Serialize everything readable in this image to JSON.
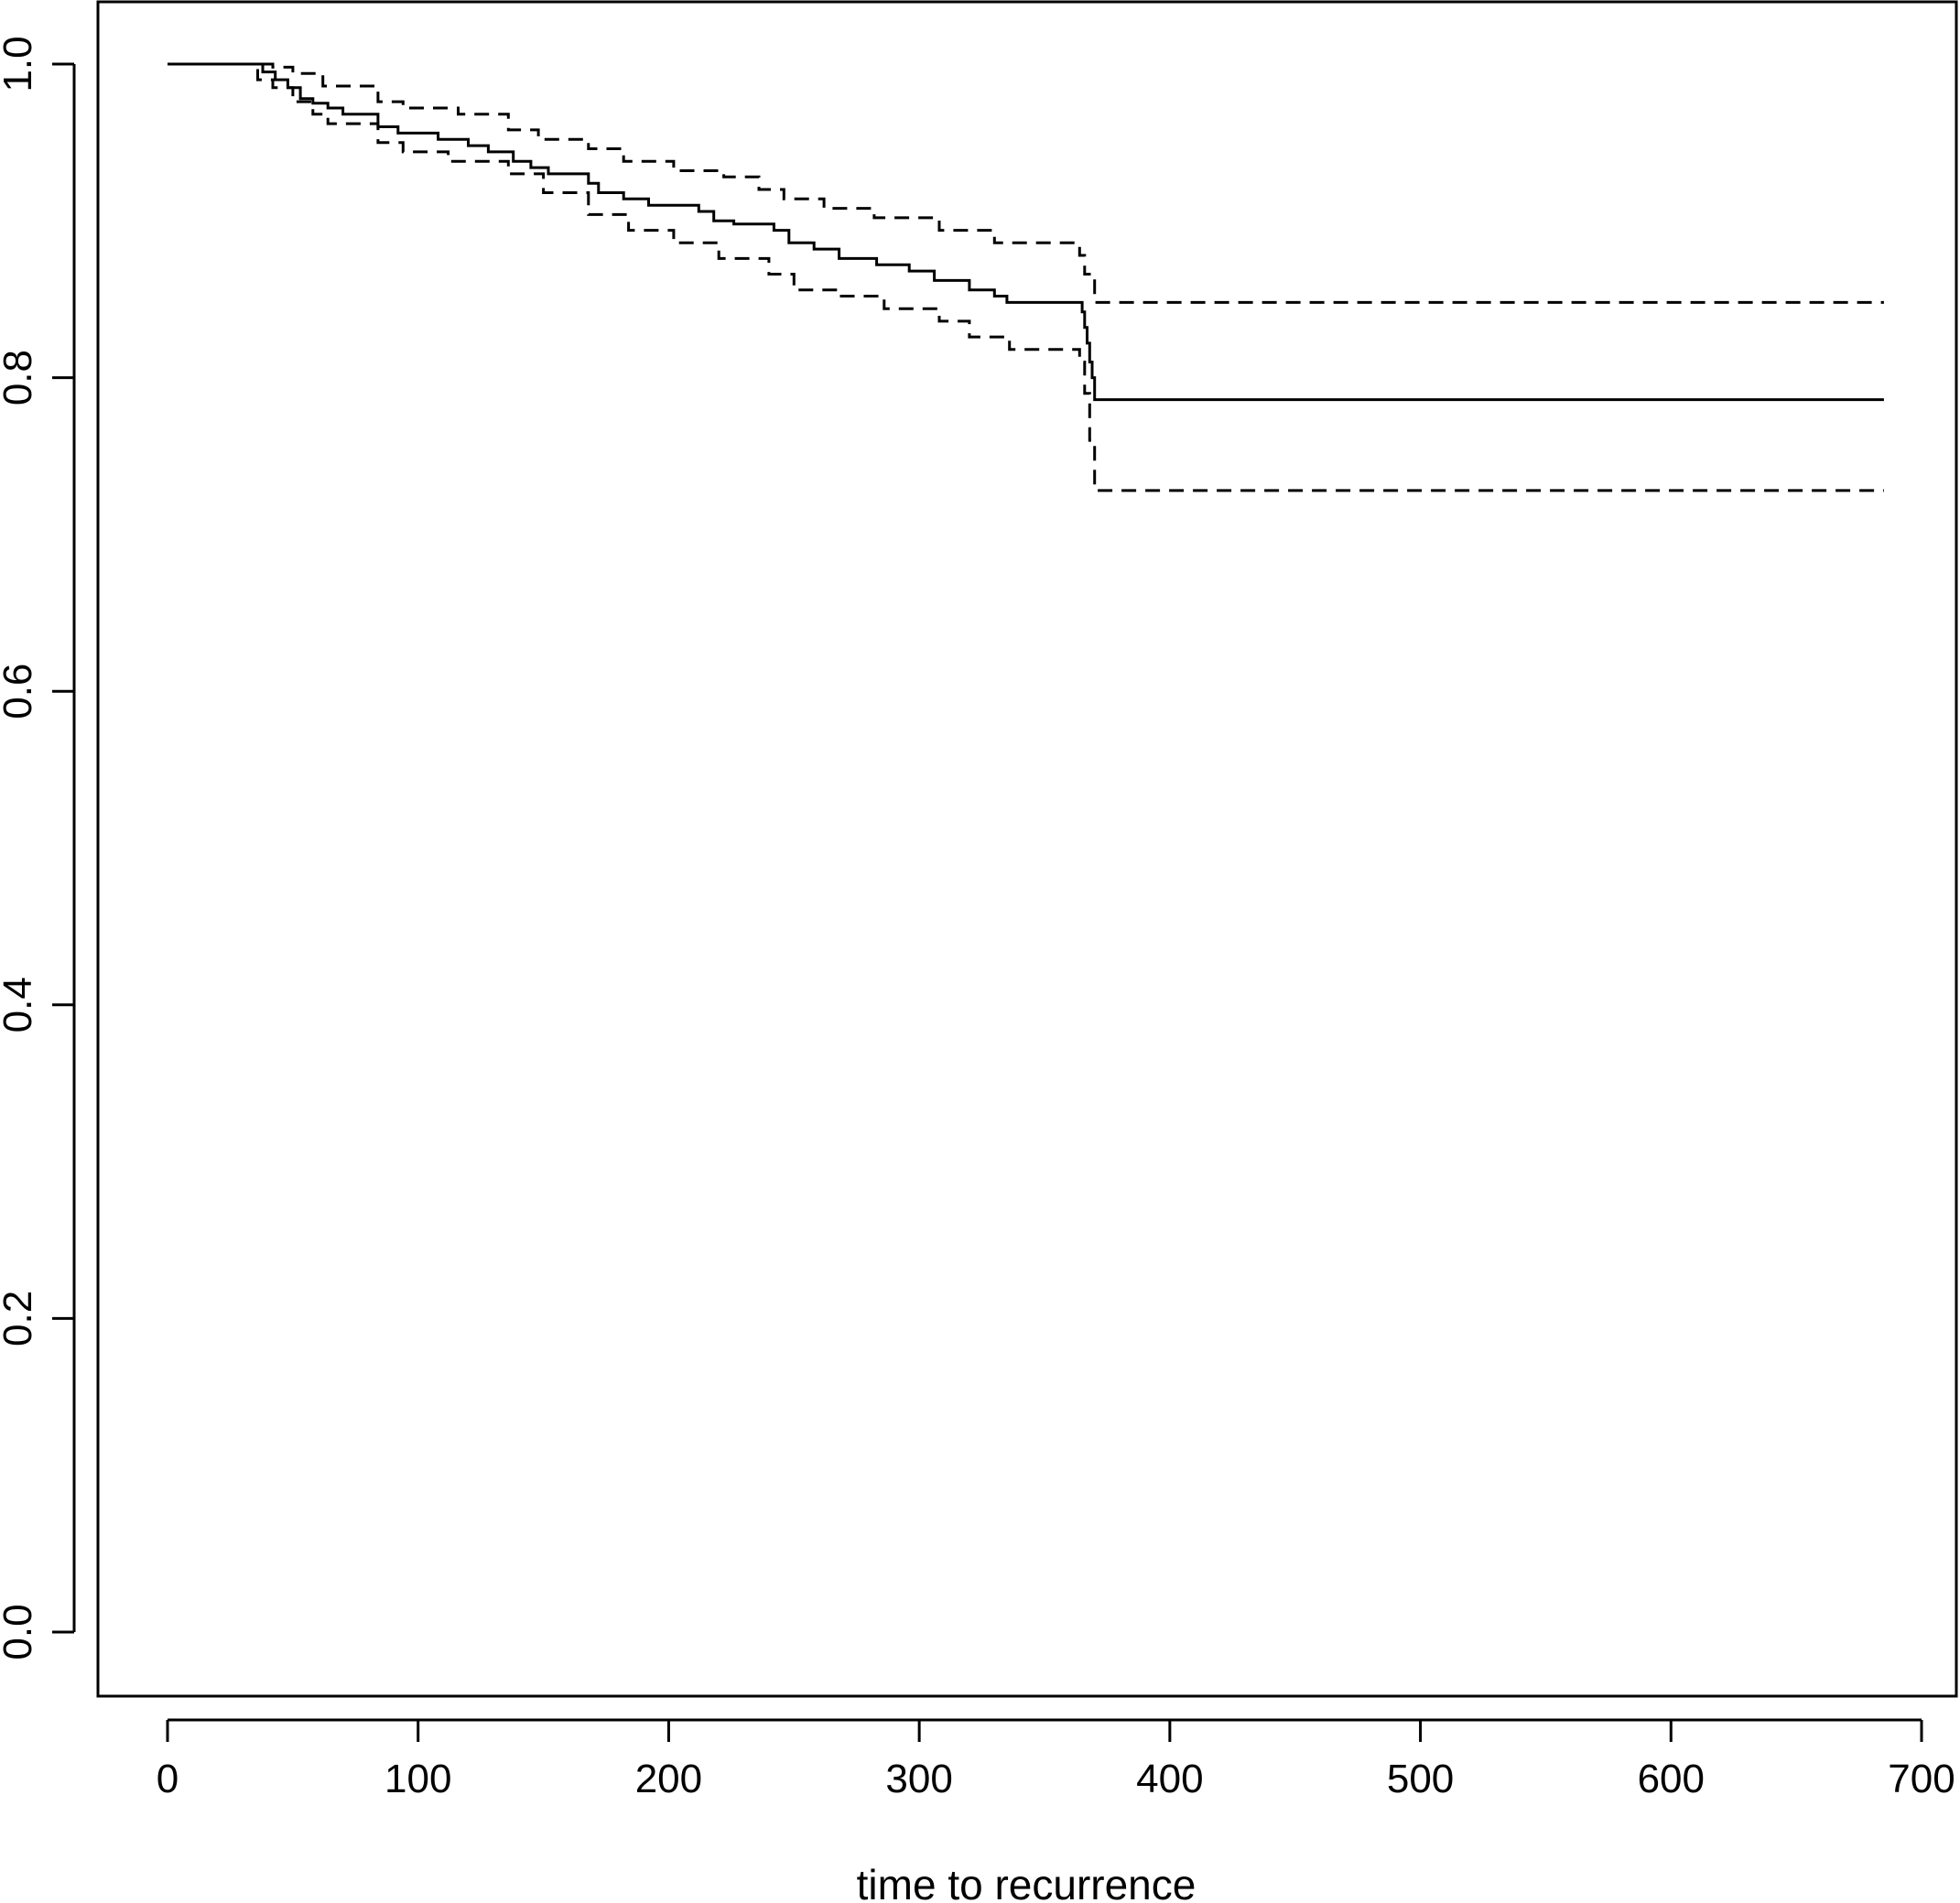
{
  "chart_data": {
    "type": "line",
    "title": "",
    "xlabel": "time to recurrence",
    "ylabel": "",
    "xlim": [
      -27,
      700
    ],
    "ylim": [
      -0.04,
      1.04
    ],
    "x_ticks": [
      "0",
      "100",
      "200",
      "300",
      "400",
      "500",
      "600",
      "700"
    ],
    "x_tick_values": [
      0,
      100,
      200,
      300,
      400,
      500,
      600,
      700
    ],
    "y_ticks": [
      "0.0",
      "0.2",
      "0.4",
      "0.6",
      "0.8",
      "1.0"
    ],
    "y_tick_values": [
      0,
      0.2,
      0.4,
      0.6,
      0.8,
      1.0
    ],
    "grid": false,
    "legend": "none",
    "series": [
      {
        "style": "solid",
        "x": [
          0,
          38,
          43,
          48,
          53,
          58,
          64,
          70,
          84,
          92,
          108,
          120,
          128,
          138,
          145,
          152,
          168,
          172,
          182,
          192,
          212,
          218,
          226,
          242,
          248,
          258,
          268,
          283,
          296,
          306,
          320,
          330,
          335,
          365,
          366,
          367,
          368,
          369,
          370,
          685
        ],
        "y": [
          1.0,
          0.995,
          0.99,
          0.985,
          0.978,
          0.975,
          0.972,
          0.968,
          0.96,
          0.956,
          0.952,
          0.948,
          0.944,
          0.938,
          0.934,
          0.93,
          0.924,
          0.918,
          0.914,
          0.91,
          0.906,
          0.9,
          0.898,
          0.894,
          0.886,
          0.882,
          0.876,
          0.872,
          0.868,
          0.862,
          0.856,
          0.852,
          0.848,
          0.842,
          0.832,
          0.822,
          0.81,
          0.8,
          0.786,
          0.786
        ]
      },
      {
        "style": "dashed",
        "x": [
          0,
          42,
          50,
          62,
          84,
          94,
          116,
          136,
          148,
          168,
          182,
          202,
          222,
          236,
          246,
          262,
          282,
          308,
          330,
          364,
          366,
          370,
          685
        ],
        "y": [
          1.0,
          0.998,
          0.994,
          0.986,
          0.976,
          0.972,
          0.968,
          0.958,
          0.952,
          0.946,
          0.938,
          0.932,
          0.928,
          0.92,
          0.914,
          0.908,
          0.902,
          0.894,
          0.886,
          0.878,
          0.866,
          0.848,
          0.848
        ]
      },
      {
        "style": "dashed",
        "x": [
          0,
          36,
          42,
          50,
          58,
          64,
          84,
          94,
          112,
          136,
          150,
          168,
          184,
          202,
          220,
          240,
          250,
          268,
          286,
          308,
          320,
          336,
          364,
          366,
          368,
          370,
          685
        ],
        "y": [
          1.0,
          0.99,
          0.985,
          0.976,
          0.968,
          0.962,
          0.95,
          0.944,
          0.938,
          0.93,
          0.918,
          0.904,
          0.894,
          0.886,
          0.876,
          0.866,
          0.856,
          0.852,
          0.844,
          0.836,
          0.826,
          0.818,
          0.81,
          0.79,
          0.76,
          0.728,
          0.728
        ]
      }
    ]
  }
}
